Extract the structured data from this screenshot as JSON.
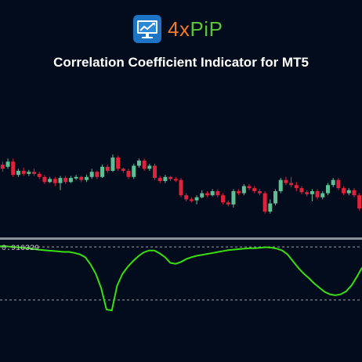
{
  "header": {
    "brand_4x": "4x",
    "brand_pip": "PiP",
    "title": "Correlation Coefficient Indicator for MT5"
  },
  "indicator": {
    "value_label": "0.916329"
  },
  "colors": {
    "background": "#020c1c",
    "bull": "#5fbf94",
    "bear": "#e0233a",
    "correlation_line": "#3adf10",
    "separator": "#8a8f99",
    "level_line": "#9aa0a8"
  },
  "chart_data": {
    "type": "candlestick",
    "candles": [
      {
        "o": 6,
        "c": 2,
        "h": 9,
        "l": -1
      },
      {
        "o": 4,
        "c": 9,
        "h": 12,
        "l": 2
      },
      {
        "o": 9,
        "c": -4,
        "h": 12,
        "l": -6
      },
      {
        "o": -4,
        "c": 0,
        "h": 2,
        "l": -6
      },
      {
        "o": 0,
        "c": -3,
        "h": 3,
        "l": -5
      },
      {
        "o": -3,
        "c": -1,
        "h": 1,
        "l": -5
      },
      {
        "o": -1,
        "c": -3,
        "h": 2,
        "l": -5
      },
      {
        "o": -3,
        "c": -6,
        "h": -1,
        "l": -8
      },
      {
        "o": -6,
        "c": -11,
        "h": -4,
        "l": -13
      },
      {
        "o": -11,
        "c": -8,
        "h": -6,
        "l": -12
      },
      {
        "o": -8,
        "c": -12,
        "h": -6,
        "l": -15
      },
      {
        "o": -12,
        "c": -7,
        "h": -5,
        "l": -19
      },
      {
        "o": -7,
        "c": -11,
        "h": -5,
        "l": -13
      },
      {
        "o": -11,
        "c": -7,
        "h": -5,
        "l": -12
      },
      {
        "o": -7,
        "c": -6,
        "h": -4,
        "l": -9
      },
      {
        "o": -6,
        "c": -9,
        "h": -5,
        "l": -11
      },
      {
        "o": -9,
        "c": -6,
        "h": -4,
        "l": -11
      },
      {
        "o": -6,
        "c": -1,
        "h": 2,
        "l": -8
      },
      {
        "o": -1,
        "c": -6,
        "h": 0,
        "l": -8
      },
      {
        "o": -6,
        "c": 4,
        "h": 6,
        "l": -7
      },
      {
        "o": 4,
        "c": 0,
        "h": 6,
        "l": -2
      },
      {
        "o": 0,
        "c": 13,
        "h": 16,
        "l": -1
      },
      {
        "o": 13,
        "c": 2,
        "h": 15,
        "l": 0
      },
      {
        "o": 2,
        "c": 0,
        "h": 3,
        "l": -2
      },
      {
        "o": 0,
        "c": -6,
        "h": 2,
        "l": -8
      },
      {
        "o": -6,
        "c": 5,
        "h": 7,
        "l": -8
      },
      {
        "o": 5,
        "c": 10,
        "h": 12,
        "l": 3
      },
      {
        "o": 10,
        "c": 2,
        "h": 12,
        "l": 0
      },
      {
        "o": 2,
        "c": 5,
        "h": 7,
        "l": 0
      },
      {
        "o": 5,
        "c": -7,
        "h": 7,
        "l": -9
      },
      {
        "o": -7,
        "c": -10,
        "h": -5,
        "l": -12
      },
      {
        "o": -10,
        "c": -6,
        "h": -4,
        "l": -12
      },
      {
        "o": -6,
        "c": -8,
        "h": -5,
        "l": -10
      },
      {
        "o": -8,
        "c": -9,
        "h": -6,
        "l": -11
      },
      {
        "o": -9,
        "c": -24,
        "h": -7,
        "l": -26
      },
      {
        "o": -24,
        "c": -28,
        "h": -22,
        "l": -30
      },
      {
        "o": -28,
        "c": -29,
        "h": -26,
        "l": -31
      },
      {
        "o": -29,
        "c": -26,
        "h": -24,
        "l": -33
      },
      {
        "o": -26,
        "c": -22,
        "h": -19,
        "l": -27
      },
      {
        "o": -22,
        "c": -24,
        "h": -20,
        "l": -26
      },
      {
        "o": -24,
        "c": -20,
        "h": -18,
        "l": -25
      },
      {
        "o": -20,
        "c": -24,
        "h": -18,
        "l": -26
      },
      {
        "o": -24,
        "c": -31,
        "h": -22,
        "l": -33
      },
      {
        "o": -31,
        "c": -33,
        "h": -29,
        "l": -35
      },
      {
        "o": -33,
        "c": -20,
        "h": -18,
        "l": -36
      },
      {
        "o": -20,
        "c": -22,
        "h": -18,
        "l": -24
      },
      {
        "o": -22,
        "c": -15,
        "h": -13,
        "l": -24
      },
      {
        "o": -15,
        "c": -17,
        "h": -13,
        "l": -19
      },
      {
        "o": -17,
        "c": -20,
        "h": -15,
        "l": -22
      },
      {
        "o": -20,
        "c": -22,
        "h": -18,
        "l": -24
      },
      {
        "o": -22,
        "c": -40,
        "h": -20,
        "l": -42
      },
      {
        "o": -40,
        "c": -32,
        "h": -28,
        "l": -42
      },
      {
        "o": -32,
        "c": -20,
        "h": -18,
        "l": -34
      },
      {
        "o": -20,
        "c": -9,
        "h": -7,
        "l": -22
      },
      {
        "o": -9,
        "c": -12,
        "h": -6,
        "l": -14
      },
      {
        "o": -12,
        "c": -14,
        "h": -6,
        "l": -16
      },
      {
        "o": -14,
        "c": -17,
        "h": -11,
        "l": -20
      },
      {
        "o": -17,
        "c": -21,
        "h": -15,
        "l": -23
      },
      {
        "o": -21,
        "c": -23,
        "h": -19,
        "l": -25
      },
      {
        "o": -23,
        "c": -20,
        "h": -18,
        "l": -30
      },
      {
        "o": -20,
        "c": -26,
        "h": -18,
        "l": -28
      },
      {
        "o": -26,
        "c": -22,
        "h": -20,
        "l": -28
      },
      {
        "o": -22,
        "c": -14,
        "h": -12,
        "l": -24
      },
      {
        "o": -14,
        "c": -9,
        "h": -7,
        "l": -16
      },
      {
        "o": -9,
        "c": -17,
        "h": -7,
        "l": -19
      },
      {
        "o": -17,
        "c": -22,
        "h": -15,
        "l": -24
      },
      {
        "o": -22,
        "c": -19,
        "h": -17,
        "l": -24
      },
      {
        "o": -19,
        "c": -24,
        "h": -17,
        "l": -26
      },
      {
        "o": -24,
        "c": -37,
        "h": -22,
        "l": -39
      }
    ],
    "indicator_levels": [
      0.916329,
      -0.2
    ],
    "correlation": [
      0.93,
      0.93,
      0.92,
      0.91,
      0.9,
      0.89,
      0.88,
      0.86,
      0.85,
      0.84,
      0.83,
      0.82,
      0.81,
      0.81,
      0.79,
      0.76,
      0.7,
      0.55,
      0.35,
      0.05,
      -0.4,
      -0.42,
      0.1,
      0.35,
      0.5,
      0.62,
      0.72,
      0.8,
      0.84,
      0.84,
      0.78,
      0.7,
      0.58,
      0.56,
      0.6,
      0.66,
      0.7,
      0.73,
      0.75,
      0.77,
      0.79,
      0.81,
      0.83,
      0.85,
      0.86,
      0.87,
      0.88,
      0.89,
      0.89,
      0.9,
      0.91,
      0.9,
      0.88,
      0.84,
      0.76,
      0.62,
      0.48,
      0.36,
      0.26,
      0.15,
      0.06,
      -0.03,
      -0.08,
      -0.1,
      -0.08,
      -0.02,
      0.1,
      0.28,
      0.48
    ]
  }
}
